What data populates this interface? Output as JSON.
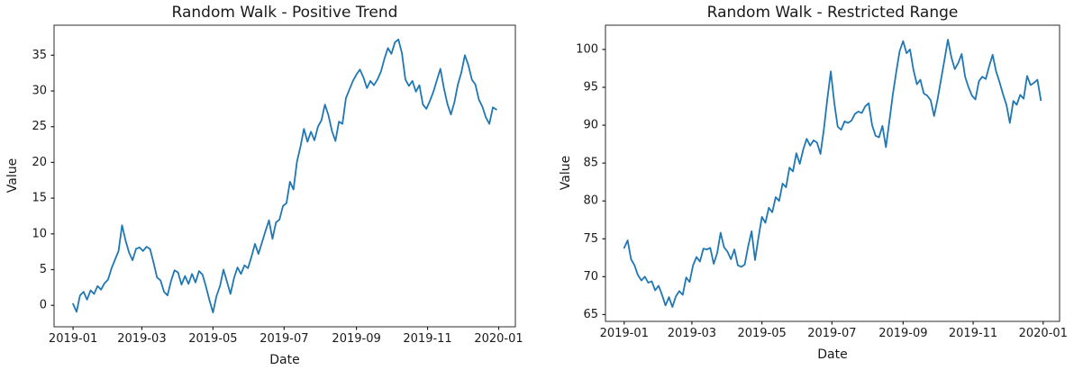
{
  "figure": {
    "background": "#ffffff",
    "text_color": "#1a1a1a",
    "frame_color": "#2b2b2b"
  },
  "chart_data": [
    {
      "type": "line",
      "title": "Random Walk - Positive Trend",
      "xlabel": "Date",
      "ylabel": "Value",
      "series_color": "#1f77b4",
      "grid": false,
      "legend": null,
      "x_start_date": "2019-01-01",
      "x_step_days": 3,
      "x_tick_labels": [
        "2019-01",
        "2019-03",
        "2019-05",
        "2019-07",
        "2019-09",
        "2019-11",
        "2020-01"
      ],
      "x_tick_days": [
        0,
        59,
        120,
        181,
        243,
        304,
        365
      ],
      "xlim_days": [
        -16.3,
        379.3
      ],
      "y_ticks": [
        0,
        5,
        10,
        15,
        20,
        25,
        30,
        35
      ],
      "ylim": [
        -3.0,
        39.2
      ],
      "values": [
        0.2,
        -0.9,
        1.4,
        1.9,
        0.8,
        2.1,
        1.6,
        2.7,
        2.2,
        3.1,
        3.6,
        5.2,
        6.4,
        7.6,
        11.2,
        9.1,
        7.4,
        6.3,
        7.9,
        8.1,
        7.6,
        8.2,
        7.9,
        6.0,
        3.9,
        3.5,
        1.9,
        1.4,
        3.4,
        4.9,
        4.6,
        2.9,
        4.1,
        3.0,
        4.4,
        3.2,
        4.8,
        4.3,
        2.6,
        0.7,
        -1.0,
        1.3,
        2.7,
        5.0,
        3.3,
        1.6,
        3.8,
        5.3,
        4.4,
        5.6,
        5.2,
        6.8,
        8.6,
        7.2,
        8.8,
        10.4,
        11.9,
        9.3,
        11.6,
        12.0,
        13.9,
        14.3,
        17.3,
        16.2,
        20.1,
        22.2,
        24.7,
        22.9,
        24.3,
        23.1,
        25.0,
        25.9,
        28.1,
        26.6,
        24.4,
        23.0,
        25.7,
        25.4,
        29.0,
        30.2,
        31.4,
        32.3,
        33.0,
        31.9,
        30.4,
        31.4,
        30.8,
        31.6,
        32.7,
        34.5,
        36.0,
        35.2,
        36.8,
        37.2,
        35.3,
        31.6,
        30.7,
        31.4,
        29.9,
        30.8,
        28.1,
        27.5,
        28.6,
        29.9,
        31.5,
        33.1,
        30.4,
        28.2,
        26.7,
        28.4,
        30.9,
        32.6,
        35.0,
        33.6,
        31.6,
        30.9,
        28.8,
        27.8,
        26.3,
        25.4,
        27.7,
        27.4
      ]
    },
    {
      "type": "line",
      "title": "Random Walk - Restricted Range",
      "xlabel": "Date",
      "ylabel": "Value",
      "series_color": "#1f77b4",
      "grid": false,
      "legend": null,
      "x_start_date": "2019-01-01",
      "x_step_days": 3,
      "x_tick_labels": [
        "2019-01",
        "2019-03",
        "2019-05",
        "2019-07",
        "2019-09",
        "2019-11",
        "2020-01"
      ],
      "x_tick_days": [
        0,
        59,
        120,
        181,
        243,
        304,
        365
      ],
      "xlim_days": [
        -16.3,
        379.3
      ],
      "y_ticks": [
        65,
        70,
        75,
        80,
        85,
        90,
        95,
        100
      ],
      "ylim": [
        64.1,
        103.2
      ],
      "values": [
        73.8,
        74.8,
        72.3,
        71.5,
        70.2,
        69.5,
        70.0,
        69.2,
        69.4,
        68.2,
        68.8,
        67.6,
        66.2,
        67.3,
        66.0,
        67.4,
        68.1,
        67.6,
        69.9,
        69.3,
        71.5,
        72.6,
        72.0,
        73.7,
        73.6,
        73.8,
        71.7,
        73.1,
        75.8,
        73.9,
        73.3,
        72.3,
        73.6,
        71.5,
        71.3,
        71.6,
        74.0,
        76.0,
        72.2,
        75.2,
        77.9,
        77.1,
        79.1,
        78.5,
        80.5,
        80.0,
        82.3,
        81.8,
        84.4,
        83.9,
        86.3,
        84.9,
        86.8,
        88.2,
        87.3,
        88.0,
        87.7,
        86.2,
        89.5,
        93.5,
        97.1,
        93.0,
        89.8,
        89.4,
        90.5,
        90.3,
        90.6,
        91.5,
        91.8,
        91.6,
        92.5,
        92.9,
        90.0,
        88.6,
        88.4,
        89.9,
        87.1,
        90.5,
        94.0,
        97.0,
        99.8,
        101.1,
        99.5,
        100.0,
        97.3,
        95.4,
        96.0,
        94.2,
        93.9,
        93.3,
        91.2,
        93.4,
        96.0,
        98.6,
        101.3,
        99.0,
        97.4,
        98.2,
        99.4,
        96.4,
        95.0,
        93.9,
        93.4,
        95.8,
        96.4,
        96.1,
        97.8,
        99.3,
        97.1,
        95.7,
        94.1,
        92.7,
        90.3,
        93.2,
        92.7,
        94.0,
        93.5,
        96.5,
        95.3,
        95.6,
        96.0,
        93.3
      ]
    }
  ]
}
